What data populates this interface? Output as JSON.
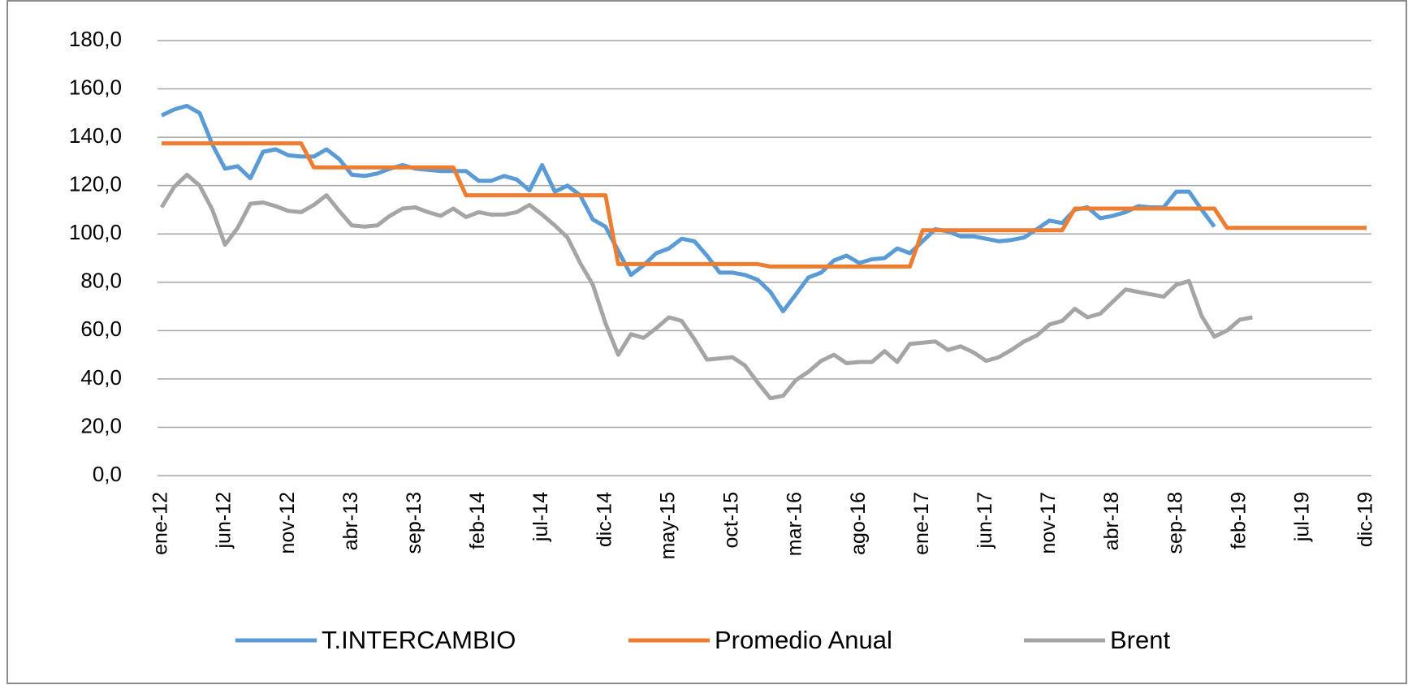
{
  "chart_data": {
    "type": "line",
    "categories": [
      "ene-12",
      null,
      null,
      null,
      null,
      "jun-12",
      null,
      null,
      null,
      null,
      "nov-12",
      null,
      null,
      null,
      null,
      "abr-13",
      null,
      null,
      null,
      null,
      "sep-13",
      null,
      null,
      null,
      null,
      "feb-14",
      null,
      null,
      null,
      null,
      "jul-14",
      null,
      null,
      null,
      null,
      "dic-14",
      null,
      null,
      null,
      null,
      "may-15",
      null,
      null,
      null,
      null,
      "oct-15",
      null,
      null,
      null,
      null,
      "mar-16",
      null,
      null,
      null,
      null,
      "ago-16",
      null,
      null,
      null,
      null,
      "ene-17",
      null,
      null,
      null,
      null,
      "jun-17",
      null,
      null,
      null,
      null,
      "nov-17",
      null,
      null,
      null,
      null,
      "abr-18",
      null,
      null,
      null,
      null,
      "sep-18",
      null,
      null,
      null,
      null,
      "feb-19",
      null,
      null,
      null,
      null,
      "jul-19",
      null,
      null,
      null,
      null,
      "dic-19"
    ],
    "series": [
      {
        "name": "T.INTERCAMBIO",
        "color": "#5b9bd5",
        "values": [
          149,
          151.5,
          153,
          150,
          137,
          127,
          128,
          123,
          134,
          135,
          132.5,
          132,
          132,
          135,
          131,
          124.5,
          124,
          125,
          127,
          128.5,
          127,
          126.5,
          126,
          126,
          126,
          122,
          122,
          124,
          122.5,
          118,
          128.5,
          117.5,
          120,
          116,
          106,
          103,
          93,
          83,
          87,
          92,
          94,
          98,
          97,
          91,
          84,
          84,
          83,
          81,
          76,
          68,
          75,
          82,
          84,
          89,
          91,
          88,
          89.5,
          90,
          94,
          92,
          97,
          102,
          101,
          99,
          99,
          98,
          97,
          97.5,
          98.5,
          102,
          105.5,
          104.5,
          110,
          111,
          106.5,
          107.5,
          109,
          111.5,
          111,
          111,
          117.5,
          117.5,
          110,
          103,
          null,
          null,
          null,
          null,
          null,
          null,
          null,
          null,
          null,
          null,
          null,
          null
        ]
      },
      {
        "name": "Promedio Anual",
        "color": "#ed7d31",
        "values": [
          137.5,
          137.5,
          137.5,
          137.5,
          137.5,
          137.5,
          137.5,
          137.5,
          137.5,
          137.5,
          137.5,
          137.5,
          127.5,
          127.5,
          127.5,
          127.5,
          127.5,
          127.5,
          127.5,
          127.5,
          127.5,
          127.5,
          127.5,
          127.5,
          116,
          116,
          116,
          116,
          116,
          116,
          116,
          116,
          116,
          116,
          116,
          116,
          87.5,
          87.5,
          87.5,
          87.5,
          87.5,
          87.5,
          87.5,
          87.5,
          87.5,
          87.5,
          87.5,
          87.5,
          86.5,
          86.5,
          86.5,
          86.5,
          86.5,
          86.5,
          86.5,
          86.5,
          86.5,
          86.5,
          86.5,
          86.5,
          101.5,
          101.5,
          101.5,
          101.5,
          101.5,
          101.5,
          101.5,
          101.5,
          101.5,
          101.5,
          101.5,
          101.5,
          110.5,
          110.5,
          110.5,
          110.5,
          110.5,
          110.5,
          110.5,
          110.5,
          110.5,
          110.5,
          110.5,
          110.5,
          102.5,
          102.5,
          102.5,
          102.5,
          102.5,
          102.5,
          102.5,
          102.5,
          102.5,
          102.5,
          102.5,
          102.5
        ]
      },
      {
        "name": "Brent",
        "color": "#a5a5a5",
        "values": [
          111,
          119.5,
          124.5,
          120,
          110,
          95.5,
          102.5,
          112.5,
          113,
          111.5,
          109.5,
          109,
          112,
          116,
          109.5,
          103.5,
          103,
          103.5,
          107.5,
          110.5,
          111,
          109,
          107.5,
          110.5,
          107,
          109,
          108,
          108,
          109,
          112,
          108,
          103.5,
          98.5,
          88,
          79,
          63,
          50,
          58.5,
          57,
          61,
          65.5,
          64,
          56.5,
          48,
          48.5,
          49,
          45.5,
          38.5,
          32,
          33,
          39.5,
          43,
          47.5,
          50,
          46.5,
          47,
          47,
          51.5,
          47,
          54.5,
          55,
          55.5,
          52,
          53.5,
          51,
          47.5,
          49,
          52,
          55.5,
          58,
          62.5,
          64,
          69,
          65.5,
          67,
          72,
          77,
          76,
          75,
          74,
          79,
          80.5,
          66,
          57.5,
          60,
          64.5,
          65.5,
          null,
          null,
          null,
          null,
          null,
          null,
          null,
          null,
          null
        ]
      }
    ],
    "ylim": [
      0,
      180
    ],
    "yticks": [
      {
        "value": 0,
        "label": "0,0"
      },
      {
        "value": 20,
        "label": "20,0"
      },
      {
        "value": 40,
        "label": "40,0"
      },
      {
        "value": 60,
        "label": "60,0"
      },
      {
        "value": 80,
        "label": "80,0"
      },
      {
        "value": 100,
        "label": "100,0"
      },
      {
        "value": 120,
        "label": "120,0"
      },
      {
        "value": 140,
        "label": "140,0"
      },
      {
        "value": 160,
        "label": "160,0"
      },
      {
        "value": 180,
        "label": "180,0"
      }
    ],
    "grid": true,
    "legend": "bottom"
  }
}
